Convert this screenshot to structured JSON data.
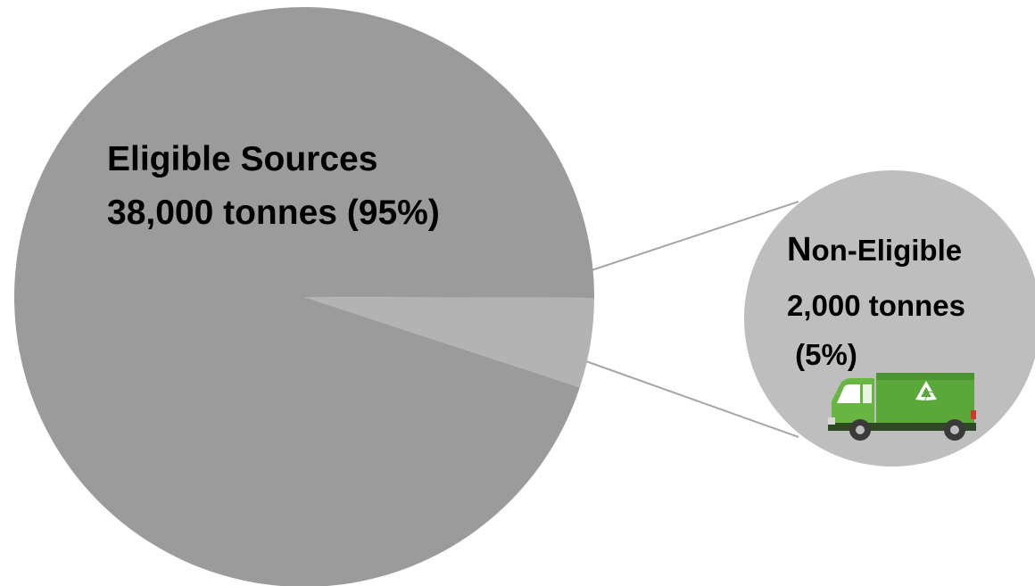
{
  "chart_data": {
    "type": "pie",
    "slices": [
      {
        "id": "eligible",
        "line1": "Eligible Sources",
        "line2": "38,000 tonnes (95%)",
        "value": 38000,
        "percent": 95,
        "color": "#9b9b9b"
      },
      {
        "id": "non-eligible",
        "line1_lead": "N",
        "line1_rest": "on-Eligible",
        "line2": "2,000 tonnes",
        "line3": " (5%)",
        "value": 2000,
        "percent": 5,
        "color": "#b3b3b3"
      }
    ],
    "callout": {
      "bubble_color": "#bebebe",
      "connector_color": "#a6a6a6",
      "icon": "recycling-garbage-truck-icon"
    },
    "colors": {
      "truck_body": "#5aa83a",
      "truck_cab": "#69b544",
      "truck_dark": "#2f4a22",
      "wheel": "#3a3a3a"
    }
  }
}
